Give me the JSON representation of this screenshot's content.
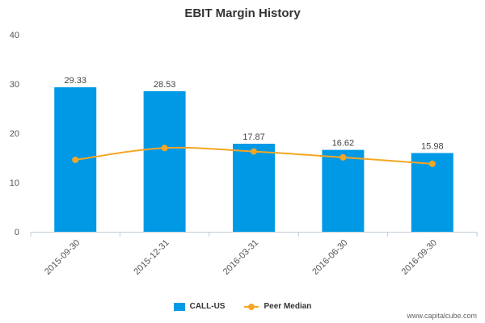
{
  "chart_data": {
    "type": "bar",
    "title": "EBIT Margin History",
    "categories": [
      "2015-09-30",
      "2015-12-31",
      "2016-03-31",
      "2016-06-30",
      "2016-09-30"
    ],
    "series": [
      {
        "name": "CALL-US",
        "type": "bar",
        "color": "#0099e6",
        "values": [
          29.33,
          28.53,
          17.87,
          16.62,
          15.98
        ],
        "labels": [
          "29.33",
          "28.53",
          "17.87",
          "16.62",
          "15.98"
        ]
      },
      {
        "name": "Peer Median",
        "type": "line",
        "color": "#f5a623",
        "values": [
          14.6,
          17.0,
          16.3,
          15.1,
          13.8
        ]
      }
    ],
    "ylim": [
      0,
      40
    ],
    "yticks": [
      "0",
      "10",
      "20",
      "30",
      "40"
    ],
    "grid": false,
    "legend": "bottom"
  },
  "footer": {
    "source": "www.capitalcube.com"
  }
}
